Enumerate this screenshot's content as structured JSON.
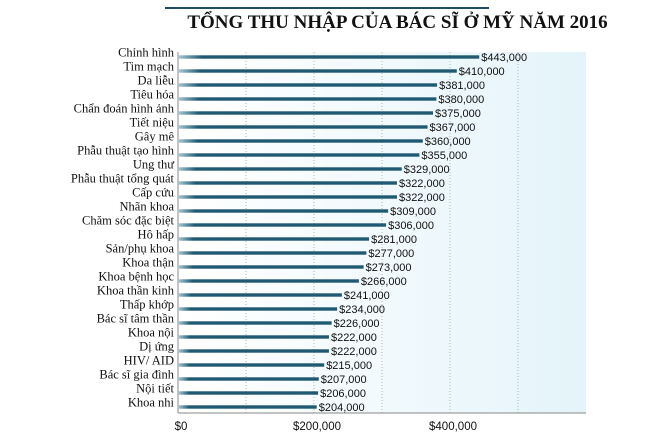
{
  "chart_data": {
    "type": "bar",
    "orientation": "horizontal",
    "title": "TỔNG THU NHẬP CỦA BÁC SĨ Ở MỸ NĂM 2016",
    "categories": [
      "Chỉnh hình",
      "Tim mạch",
      "Da liễu",
      "Tiêu hóa",
      "Chẩn đoán hình ảnh",
      "Tiết niệu",
      "Gây mê",
      "Phẫu thuật tạo hình",
      "Ung thư",
      "Phẫu thuật tổng quát",
      "Cấp cứu",
      "Nhãn khoa",
      "Chăm sóc đặc biệt",
      "Hô hấp",
      "Sản/phụ khoa",
      "Khoa thận",
      "Khoa bệnh học",
      "Khoa thần kinh",
      "Thấp khớp",
      "Bác sĩ tâm thần",
      "Khoa nội",
      "Dị ứng",
      "HIV/ AID",
      "Bác sĩ gia đình",
      "Nội tiết",
      "Khoa nhi"
    ],
    "values": [
      443000,
      410000,
      381000,
      380000,
      375000,
      367000,
      360000,
      355000,
      329000,
      322000,
      322000,
      309000,
      306000,
      281000,
      277000,
      273000,
      266000,
      241000,
      234000,
      226000,
      222000,
      222000,
      215000,
      207000,
      206000,
      204000
    ],
    "data_labels": [
      "$443,000",
      "$410,000",
      "$381,000",
      "$380,000",
      "$375,000",
      "$367,000",
      "$360,000",
      "$355,000",
      "$329,000",
      "$322,000",
      "$322,000",
      "$309,000",
      "$306,000",
      "$281,000",
      "$277,000",
      "$273,000",
      "$266,000",
      "$241,000",
      "$234,000",
      "$226,000",
      "$222,000",
      "$222,000",
      "$215,000",
      "$207,000",
      "$206,000",
      "$204,000"
    ],
    "xticks": [
      0,
      200000,
      400000
    ],
    "xtick_labels": [
      "$0",
      "$200,000",
      "$400,000"
    ],
    "xlim": [
      0,
      600000
    ],
    "grid": "dotted vertical every 100,000",
    "colors": {
      "bar": "#1f5a72",
      "plot_bg": "#eaf6fb"
    }
  }
}
